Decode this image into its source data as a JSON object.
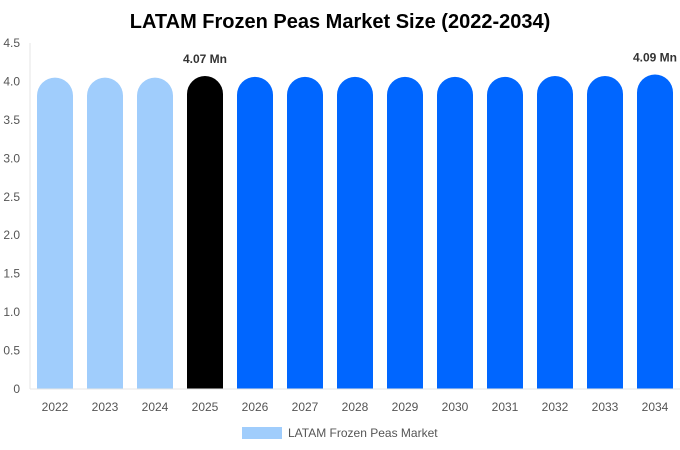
{
  "chart_data": {
    "type": "bar",
    "title": "LATAM Frozen Peas Market Size (2022-2034)",
    "categories": [
      "2022",
      "2023",
      "2024",
      "2025",
      "2026",
      "2027",
      "2028",
      "2029",
      "2030",
      "2031",
      "2032",
      "2033",
      "2034"
    ],
    "series": [
      {
        "name": "LATAM Frozen Peas Market",
        "values": [
          4.05,
          4.05,
          4.05,
          4.07,
          4.06,
          4.06,
          4.06,
          4.06,
          4.06,
          4.06,
          4.07,
          4.07,
          4.09
        ]
      }
    ],
    "bar_colors": [
      "#a0cdfc",
      "#a0cdfc",
      "#a0cdfc",
      "#000000",
      "#0066ff",
      "#0066ff",
      "#0066ff",
      "#0066ff",
      "#0066ff",
      "#0066ff",
      "#0066ff",
      "#0066ff",
      "#0066ff"
    ],
    "data_labels": [
      {
        "category": "2025",
        "text": "4.07 Mn"
      },
      {
        "category": "2034",
        "text": "4.09 Mn"
      }
    ],
    "y_ticks": [
      "0",
      "0.5",
      "1.0",
      "1.5",
      "2.0",
      "2.5",
      "3.0",
      "3.5",
      "4.0",
      "4.5"
    ],
    "ylim": [
      0,
      4.5
    ],
    "xlabel": "",
    "ylabel": "",
    "grid": false,
    "legend_position": "bottom",
    "legend_color": "#a0cdfc"
  }
}
